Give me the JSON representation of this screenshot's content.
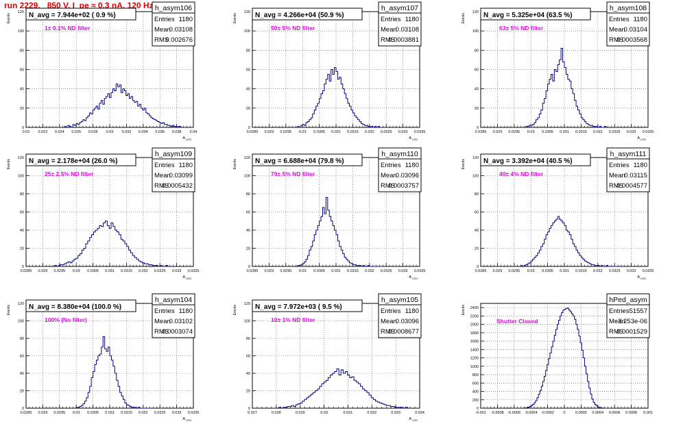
{
  "header": {
    "title": "run 2229,   850 V, I_pe ≈ 0.3 nA, 120 Hz"
  },
  "colors": {
    "histogram": "#000080",
    "annotation": "#ee00ee",
    "title": "#e00000",
    "grid": "#555555"
  },
  "chart_data": [
    {
      "type": "bar",
      "histogram": "h_asym106",
      "title": "N_avg = 7.944e+02 ( 0.9 %)",
      "annotation": "1± 0.1% ND filter",
      "ylabel": "Events",
      "xlabel": "A_LED",
      "stats": {
        "entries": "1180",
        "mean": "0.03108",
        "rms": "0.002676"
      },
      "xlim": [
        0.02,
        0.04
      ],
      "ylim": [
        0,
        120
      ],
      "xticks": [
        "0.02",
        "0.022",
        "0.024",
        "0.026",
        "0.028",
        "0.03",
        "0.032",
        "0.034",
        "0.036",
        "0.038",
        "0.04"
      ],
      "yticks": [
        "0",
        "20",
        "40",
        "60",
        "80",
        "100",
        "120"
      ],
      "x_range": [
        0.0246,
        0.0385
      ],
      "values": [
        1,
        0,
        2,
        1,
        0,
        3,
        2,
        4,
        3,
        5,
        6,
        8,
        7,
        10,
        12,
        15,
        14,
        18,
        20,
        22,
        19,
        25,
        28,
        24,
        30,
        32,
        35,
        31,
        36,
        40,
        38,
        45,
        42,
        44,
        36,
        40,
        38,
        33,
        35,
        30,
        32,
        28,
        26,
        27,
        22,
        24,
        20,
        18,
        20,
        15,
        14,
        12,
        10,
        9,
        8,
        7,
        6,
        5,
        4,
        5,
        3,
        3,
        2,
        2,
        1,
        2,
        1,
        0,
        1,
        1
      ]
    },
    {
      "type": "bar",
      "histogram": "h_asym107",
      "title": "N_avg = 4.266e+04 (50.9 %)",
      "annotation": "50± 5% ND filter",
      "ylabel": "Events",
      "xlabel": "A_LED",
      "stats": {
        "entries": "1180",
        "mean": "0.03108",
        "rms": "0.0003881"
      },
      "xlim": [
        0.0285,
        0.0335
      ],
      "ylim": [
        0,
        120
      ],
      "xticks": [
        "0.0285",
        "0.029",
        "0.0295",
        "0.03",
        "0.0305",
        "0.031",
        "0.0315",
        "0.032",
        "0.0325",
        "0.033",
        "0.0335"
      ],
      "yticks": [
        "0",
        "20",
        "40",
        "60",
        "80",
        "100",
        "120"
      ],
      "x_range": [
        0.02985,
        0.03235
      ],
      "values": [
        1,
        0,
        2,
        3,
        2,
        5,
        6,
        8,
        10,
        14,
        18,
        22,
        25,
        30,
        35,
        38,
        45,
        50,
        55,
        48,
        60,
        55,
        62,
        58,
        50,
        52,
        45,
        40,
        35,
        30,
        25,
        22,
        18,
        15,
        12,
        10,
        8,
        6,
        4,
        3,
        2,
        2,
        1,
        1,
        1,
        0,
        1,
        0,
        1,
        0
      ]
    },
    {
      "type": "bar",
      "histogram": "h_asym108",
      "title": "N_avg = 5.325e+04 (63.5 %)",
      "annotation": "63± 5% ND filter",
      "ylabel": "Events",
      "xlabel": "A_LED",
      "stats": {
        "entries": "1180",
        "mean": "0.03104",
        "rms": "0.0003568"
      },
      "xlim": [
        0.0285,
        0.0335
      ],
      "ylim": [
        0,
        120
      ],
      "xticks": [
        "0.0285",
        "0.029",
        "0.0295",
        "0.03",
        "0.0305",
        "0.031",
        "0.0315",
        "0.032",
        "0.0325",
        "0.033",
        "0.0335"
      ],
      "yticks": [
        "0",
        "20",
        "40",
        "60",
        "80",
        "100",
        "120"
      ],
      "x_range": [
        0.02985,
        0.03235
      ],
      "values": [
        1,
        1,
        2,
        2,
        3,
        5,
        8,
        10,
        14,
        18,
        25,
        30,
        38,
        45,
        50,
        55,
        48,
        60,
        58,
        65,
        70,
        82,
        68,
        62,
        55,
        50,
        48,
        40,
        35,
        28,
        22,
        18,
        14,
        10,
        8,
        6,
        4,
        3,
        2,
        2,
        1,
        1,
        1,
        0,
        1,
        0,
        0,
        1,
        0,
        0
      ]
    },
    {
      "type": "bar",
      "histogram": "h_asym109",
      "title": "N_avg = 2.178e+04 (26.0 %)",
      "annotation": "25± 2.5% ND filter",
      "ylabel": "Events",
      "xlabel": "A_LED",
      "stats": {
        "entries": "1180",
        "mean": "0.03099",
        "rms": "0.0005432"
      },
      "xlim": [
        0.0285,
        0.0335
      ],
      "ylim": [
        0,
        120
      ],
      "xticks": [
        "0.0285",
        "0.029",
        "0.0295",
        "0.03",
        "0.0305",
        "0.031",
        "0.0315",
        "0.032",
        "0.0325",
        "0.033",
        "0.0335"
      ],
      "yticks": [
        "0",
        "20",
        "40",
        "60",
        "80",
        "100",
        "120"
      ],
      "x_range": [
        0.02935,
        0.03285
      ],
      "values": [
        1,
        0,
        1,
        2,
        2,
        3,
        4,
        5,
        4,
        6,
        8,
        9,
        12,
        14,
        18,
        20,
        25,
        28,
        32,
        35,
        38,
        40,
        42,
        45,
        44,
        48,
        50,
        45,
        42,
        48,
        44,
        40,
        38,
        35,
        30,
        28,
        25,
        22,
        18,
        15,
        12,
        10,
        8,
        6,
        5,
        4,
        3,
        3,
        2,
        2,
        1,
        1,
        1,
        0,
        1,
        0,
        0,
        1,
        0,
        0
      ]
    },
    {
      "type": "bar",
      "histogram": "h_asym110",
      "title": "N_avg = 6.688e+04 (79.8 %)",
      "annotation": "79± 5% ND filter",
      "ylabel": "Events",
      "xlabel": "A_LED",
      "stats": {
        "entries": "1180",
        "mean": "0.03096",
        "rms": "0.0003757"
      },
      "xlim": [
        0.0285,
        0.0335
      ],
      "ylim": [
        0,
        120
      ],
      "xticks": [
        "0.0285",
        "0.029",
        "0.0295",
        "0.03",
        "0.0305",
        "0.031",
        "0.0315",
        "0.032",
        "0.0325",
        "0.033",
        "0.0335"
      ],
      "yticks": [
        "0",
        "20",
        "40",
        "60",
        "80",
        "100",
        "120"
      ],
      "x_range": [
        0.02985,
        0.03235
      ],
      "values": [
        1,
        1,
        2,
        3,
        5,
        8,
        12,
        18,
        22,
        28,
        35,
        40,
        45,
        50,
        55,
        65,
        58,
        76,
        62,
        55,
        50,
        45,
        40,
        35,
        28,
        22,
        18,
        14,
        10,
        8,
        6,
        4,
        3,
        2,
        2,
        1,
        1,
        1,
        0,
        1,
        0,
        0,
        1,
        0,
        0,
        0,
        0,
        0,
        0,
        0
      ]
    },
    {
      "type": "bar",
      "histogram": "h_asym111",
      "title": "N_avg = 3.392e+04 (40.5 %)",
      "annotation": "40± 4% ND filter",
      "ylabel": "Events",
      "xlabel": "A_LED",
      "stats": {
        "entries": "1180",
        "mean": "0.03115",
        "rms": "0.0004577"
      },
      "xlim": [
        0.0285,
        0.0335
      ],
      "ylim": [
        0,
        120
      ],
      "xticks": [
        "0.0285",
        "0.029",
        "0.0295",
        "0.03",
        "0.0305",
        "0.031",
        "0.0315",
        "0.032",
        "0.0325",
        "0.033",
        "0.0335"
      ],
      "yticks": [
        "0",
        "20",
        "40",
        "60",
        "80",
        "100",
        "120"
      ],
      "x_range": [
        0.0297,
        0.0326
      ],
      "values": [
        1,
        0,
        1,
        2,
        3,
        4,
        6,
        8,
        10,
        12,
        15,
        18,
        22,
        25,
        30,
        35,
        38,
        42,
        45,
        48,
        50,
        52,
        55,
        52,
        50,
        48,
        45,
        40,
        38,
        35,
        30,
        25,
        22,
        18,
        15,
        12,
        10,
        8,
        6,
        5,
        4,
        3,
        2,
        2,
        1,
        1,
        1,
        0,
        1,
        0,
        0,
        1,
        0,
        0,
        0,
        0,
        0,
        0
      ]
    },
    {
      "type": "bar",
      "histogram": "h_asym104",
      "title": "N_avg = 8.380e+04 (100.0 %)",
      "annotation": "100% (No filter)",
      "ylabel": "Events",
      "xlabel": "A_LED",
      "stats": {
        "entries": "1180",
        "mean": "0.03102",
        "rms": "0.0003074"
      },
      "xlim": [
        0.0285,
        0.0335
      ],
      "ylim": [
        0,
        120
      ],
      "xticks": [
        "0.0285",
        "0.029",
        "0.0295",
        "0.03",
        "0.0305",
        "0.031",
        "0.0315",
        "0.032",
        "0.0325",
        "0.033",
        "0.0335"
      ],
      "yticks": [
        "0",
        "20",
        "40",
        "60",
        "80",
        "100",
        "120"
      ],
      "x_range": [
        0.03,
        0.0323
      ],
      "values": [
        1,
        1,
        2,
        3,
        5,
        8,
        12,
        18,
        25,
        35,
        42,
        50,
        55,
        60,
        62,
        70,
        82,
        68,
        65,
        70,
        60,
        55,
        48,
        40,
        32,
        25,
        18,
        14,
        10,
        6,
        4,
        3,
        2,
        1,
        1,
        1,
        0,
        1,
        0,
        0,
        0,
        0,
        0,
        0,
        0,
        0
      ]
    },
    {
      "type": "bar",
      "histogram": "h_asym105",
      "title": "N_avg = 7.972e+03 ( 9.5 %)",
      "annotation": "10± 1% ND filter",
      "ylabel": "Events",
      "xlabel": "A_LED",
      "stats": {
        "entries": "1180",
        "mean": "0.03096",
        "rms": "0.0008677"
      },
      "xlim": [
        0.027,
        0.034
      ],
      "ylim": [
        0,
        120
      ],
      "xticks": [
        "0.027",
        "0.028",
        "0.029",
        "0.03",
        "0.031",
        "0.032",
        "0.033",
        "0.034"
      ],
      "yticks": [
        "0",
        "20",
        "40",
        "60",
        "80",
        "100",
        "120"
      ],
      "x_range": [
        0.0281,
        0.0335
      ],
      "values": [
        1,
        0,
        1,
        1,
        2,
        2,
        3,
        2,
        4,
        5,
        6,
        8,
        10,
        12,
        14,
        16,
        18,
        20,
        22,
        25,
        28,
        30,
        32,
        35,
        38,
        40,
        42,
        45,
        38,
        44,
        40,
        42,
        38,
        35,
        36,
        32,
        30,
        28,
        25,
        22,
        20,
        18,
        15,
        12,
        10,
        8,
        7,
        6,
        5,
        4,
        3,
        3,
        2,
        2,
        1,
        1,
        1,
        1,
        0,
        1
      ]
    },
    {
      "type": "bar",
      "histogram": "hPed_asym",
      "title": "",
      "annotation": "Shutter Closed",
      "ylabel": "Events",
      "xlabel": "",
      "stats": {
        "entries": "51557",
        "mean": "-3.253e-06",
        "rms": "0.0001529"
      },
      "xlim": [
        -0.001,
        0.001
      ],
      "ylim": [
        0,
        2500
      ],
      "xticks": [
        "-0.001",
        "-0.0008",
        "-0.0006",
        "-0.0004",
        "-0.0002",
        "0",
        "0.0002",
        "0.0004",
        "0.0006",
        "0.0008",
        "0.001"
      ],
      "yticks": [
        "0",
        "200",
        "400",
        "600",
        "800",
        "1000",
        "1200",
        "1400",
        "1600",
        "1800",
        "2000",
        "2200",
        "2400"
      ],
      "x_range": [
        -0.0005,
        0.0005
      ],
      "values": [
        2,
        4,
        8,
        15,
        25,
        40,
        60,
        90,
        130,
        180,
        250,
        330,
        420,
        520,
        640,
        760,
        900,
        1040,
        1180,
        1320,
        1460,
        1600,
        1740,
        1880,
        2000,
        2100,
        2200,
        2280,
        2340,
        2360,
        2380,
        2390,
        2340,
        2300,
        2250,
        2200,
        2120,
        2000,
        1880,
        1720,
        1560,
        1380,
        1200,
        1000,
        820,
        640,
        480,
        340,
        220,
        140,
        90,
        55,
        30,
        15,
        8,
        4,
        2,
        1
      ]
    }
  ]
}
